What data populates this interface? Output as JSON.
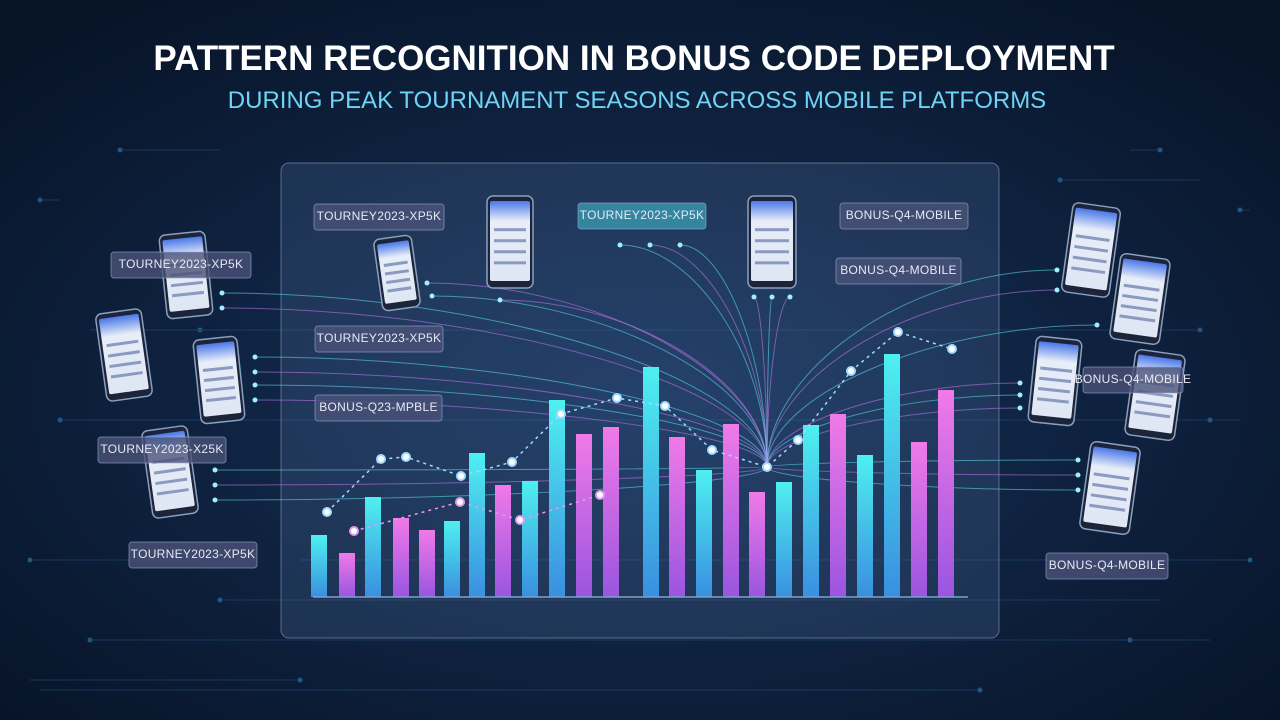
{
  "header": {
    "title": "PATTERN RECOGNITION IN BONUS CODE DEPLOYMENT",
    "subtitle": "DURING PEAK TOURNAMENT SEASONS ACROSS MOBILE PLATFORMS"
  },
  "code_labels": [
    "TOURNEY2023-XP5K",
    "TOURNEY2023-XP5K",
    "BONUS-Q4-MOBILE",
    "BONUS-Q4-MOBILE",
    "TOURNEY2023-XP5K",
    "TOURNEY2023-XP5K",
    "BONUS-Q23-MPBLE",
    "TOURNEY2023-X25K",
    "TOURNEY2023-XP5K",
    "BONUS-Q4-MOBILE",
    "BONUS-Q4-MOBILE"
  ]
}
